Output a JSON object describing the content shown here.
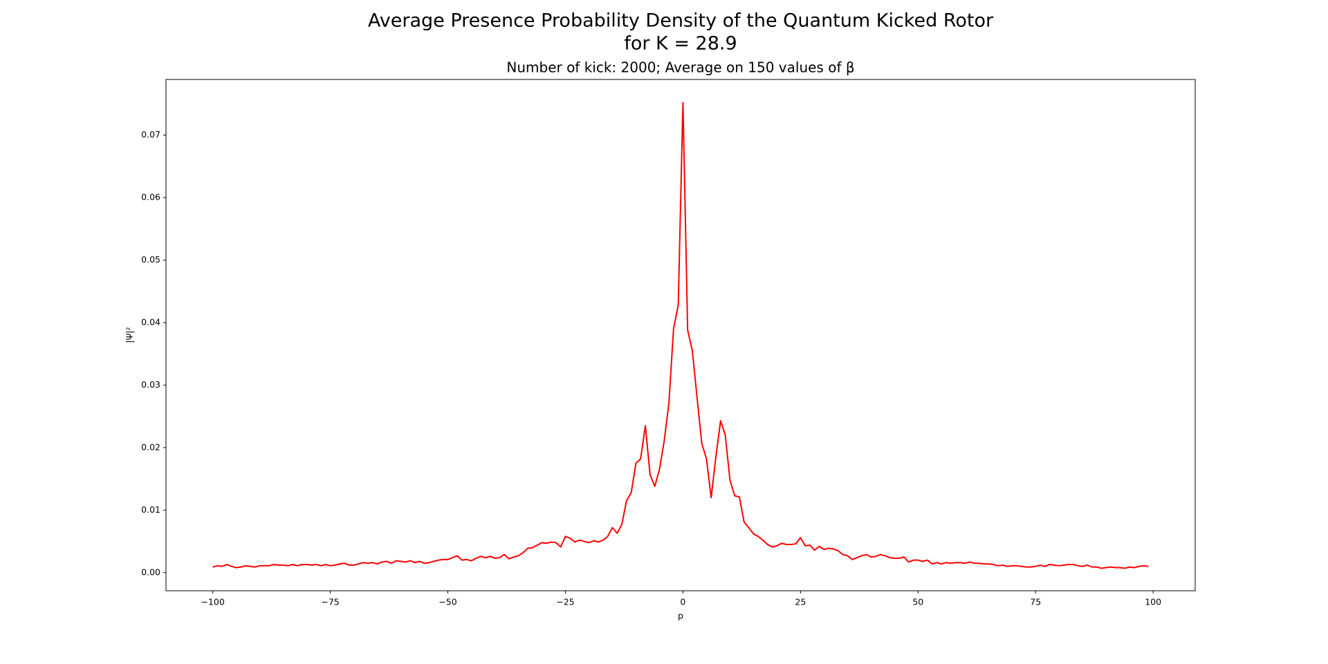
{
  "chart_data": {
    "type": "line",
    "title": [
      "Average Presence Probability Density of the Quantum Kicked Rotor",
      "for K = 28.9"
    ],
    "subtitle": "Number of kick: 2000; Average on 150 values of β",
    "xlabel": "p",
    "ylabel": "|Ψ|²",
    "x": [
      -100,
      -99,
      -98,
      -97,
      -96,
      -95,
      -94,
      -93,
      -92,
      -91,
      -90,
      -89,
      -88,
      -87,
      -86,
      -85,
      -84,
      -83,
      -82,
      -81,
      -80,
      -79,
      -78,
      -77,
      -76,
      -75,
      -74,
      -73,
      -72,
      -71,
      -70,
      -69,
      -68,
      -67,
      -66,
      -65,
      -64,
      -63,
      -62,
      -61,
      -60,
      -59,
      -58,
      -57,
      -56,
      -55,
      -54,
      -53,
      -52,
      -51,
      -50,
      -49,
      -48,
      -47,
      -46,
      -45,
      -44,
      -43,
      -42,
      -41,
      -40,
      -39,
      -38,
      -37,
      -36,
      -35,
      -34,
      -33,
      -32,
      -31,
      -30,
      -29,
      -28,
      -27,
      -26,
      -25,
      -24,
      -23,
      -22,
      -21,
      -20,
      -19,
      -18,
      -17,
      -16,
      -15,
      -14,
      -13,
      -12,
      -11,
      -10,
      -9,
      -8,
      -7,
      -6,
      -5,
      -4,
      -3,
      -2,
      -1,
      0,
      1,
      2,
      3,
      4,
      5,
      6,
      7,
      8,
      9,
      10,
      11,
      12,
      13,
      14,
      15,
      16,
      17,
      18,
      19,
      20,
      21,
      22,
      23,
      24,
      25,
      26,
      27,
      28,
      29,
      30,
      31,
      32,
      33,
      34,
      35,
      36,
      37,
      38,
      39,
      40,
      41,
      42,
      43,
      44,
      45,
      46,
      47,
      48,
      49,
      50,
      51,
      52,
      53,
      54,
      55,
      56,
      57,
      58,
      59,
      60,
      61,
      62,
      63,
      64,
      65,
      66,
      67,
      68,
      69,
      70,
      71,
      72,
      73,
      74,
      75,
      76,
      77,
      78,
      79,
      80,
      81,
      82,
      83,
      84,
      85,
      86,
      87,
      88,
      89,
      90,
      91,
      92,
      93,
      94,
      95,
      96,
      97,
      98,
      99
    ],
    "series": [
      {
        "color": "#ff0000",
        "values": [
          0.0009,
          0.0011,
          0.001,
          0.0013,
          0.001,
          0.0008,
          0.0009,
          0.0011,
          0.001,
          0.0009,
          0.0011,
          0.0011,
          0.0011,
          0.0013,
          0.0012,
          0.0012,
          0.0011,
          0.0013,
          0.0011,
          0.0013,
          0.0013,
          0.0012,
          0.0013,
          0.0011,
          0.0013,
          0.0011,
          0.0012,
          0.0014,
          0.0015,
          0.0012,
          0.0012,
          0.0014,
          0.0016,
          0.0015,
          0.0016,
          0.0014,
          0.0017,
          0.0018,
          0.0015,
          0.0019,
          0.0018,
          0.0017,
          0.0019,
          0.0016,
          0.0018,
          0.0015,
          0.0016,
          0.0018,
          0.002,
          0.0021,
          0.0021,
          0.0024,
          0.0027,
          0.002,
          0.0021,
          0.0019,
          0.0023,
          0.0026,
          0.0024,
          0.0026,
          0.0023,
          0.0024,
          0.0029,
          0.0022,
          0.0025,
          0.0027,
          0.0032,
          0.0039,
          0.004,
          0.0044,
          0.0048,
          0.0047,
          0.0049,
          0.0048,
          0.0041,
          0.0058,
          0.0055,
          0.0049,
          0.0052,
          0.005,
          0.0048,
          0.0051,
          0.0049,
          0.0052,
          0.0058,
          0.0072,
          0.0063,
          0.0077,
          0.0115,
          0.0128,
          0.0175,
          0.0182,
          0.0235,
          0.0157,
          0.0138,
          0.0165,
          0.021,
          0.027,
          0.039,
          0.0428,
          0.0752,
          0.0388,
          0.0355,
          0.028,
          0.0207,
          0.0182,
          0.012,
          0.0185,
          0.0243,
          0.022,
          0.0148,
          0.0123,
          0.0121,
          0.0081,
          0.0072,
          0.0062,
          0.0058,
          0.0052,
          0.0045,
          0.0041,
          0.0043,
          0.0047,
          0.0045,
          0.0045,
          0.0046,
          0.0056,
          0.0043,
          0.0044,
          0.0036,
          0.0042,
          0.0037,
          0.0039,
          0.0038,
          0.0035,
          0.0029,
          0.0027,
          0.0021,
          0.0024,
          0.0027,
          0.0029,
          0.0025,
          0.0026,
          0.0029,
          0.0027,
          0.0024,
          0.0023,
          0.0023,
          0.0025,
          0.0017,
          0.002,
          0.002,
          0.0018,
          0.002,
          0.0014,
          0.0016,
          0.0014,
          0.0016,
          0.0015,
          0.0016,
          0.0016,
          0.0015,
          0.0017,
          0.0015,
          0.0015,
          0.0014,
          0.0014,
          0.0013,
          0.0011,
          0.0012,
          0.001,
          0.0011,
          0.0011,
          0.001,
          0.0009,
          0.0009,
          0.001,
          0.0012,
          0.001,
          0.0013,
          0.0012,
          0.0011,
          0.0012,
          0.0013,
          0.0013,
          0.0011,
          0.001,
          0.0012,
          0.0009,
          0.0009,
          0.0007,
          0.0008,
          0.0009,
          0.0008,
          0.0008,
          0.0007,
          0.0009,
          0.0008,
          0.001,
          0.0011,
          0.001
        ]
      }
    ],
    "xlim": [
      -109.95,
      108.95
    ],
    "xticks": [
      {
        "value": -100,
        "label": "−100"
      },
      {
        "value": -75,
        "label": "−75"
      },
      {
        "value": -50,
        "label": "−50"
      },
      {
        "value": -25,
        "label": "−25"
      },
      0,
      25,
      50,
      75,
      100
    ],
    "ylim": [
      -0.0029,
      0.0789
    ],
    "yticks": [
      {
        "value": 0,
        "label": "0.00"
      },
      {
        "value": 0.01,
        "label": "0.01"
      },
      {
        "value": 0.02,
        "label": "0.02"
      },
      {
        "value": 0.03,
        "label": "0.03"
      },
      {
        "value": 0.04,
        "label": "0.04"
      },
      {
        "value": 0.05,
        "label": "0.05"
      },
      {
        "value": 0.06,
        "label": "0.06"
      },
      {
        "value": 0.07,
        "label": "0.07"
      }
    ],
    "grid": false
  }
}
